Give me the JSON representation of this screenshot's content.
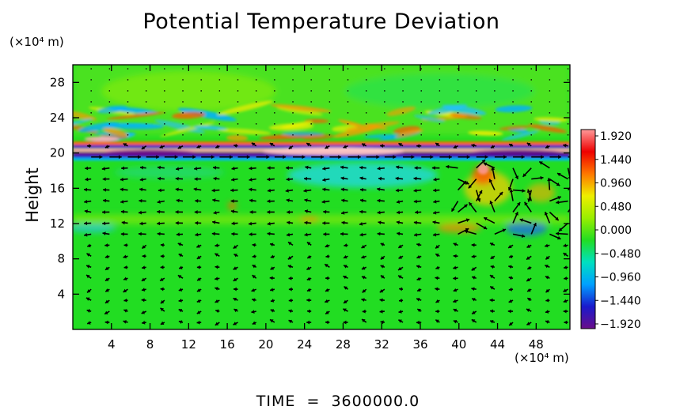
{
  "chart_data": {
    "type": "heatmap",
    "title": "Potential Temperature Deviation",
    "ylabel": "Height",
    "xlabel": "",
    "x_unit": "(×10⁴ m)",
    "y_unit": "(×10⁴ m)",
    "xlim": [
      0,
      51.5
    ],
    "ylim": [
      0,
      30
    ],
    "x_ticks": [
      4,
      8,
      12,
      16,
      20,
      24,
      28,
      32,
      36,
      40,
      44,
      48
    ],
    "y_ticks": [
      4,
      8,
      12,
      16,
      20,
      24,
      28
    ],
    "colorbar": {
      "ticks": [
        "1.920",
        "1.440",
        "0.960",
        "0.480",
        "0.000",
        "−0.480",
        "−0.960",
        "−1.440",
        "−1.920"
      ],
      "range": [
        -1.92,
        1.92
      ],
      "colors": [
        "#6a0d8a",
        "#1a1acc",
        "#00a0ff",
        "#00e0c0",
        "#22dd22",
        "#99ee00",
        "#eeee00",
        "#ff7700",
        "#ee0000",
        "#ff9999"
      ]
    },
    "overlay": "velocity vector arrows",
    "features": [
      {
        "name": "warm/cold layered band",
        "x_range": [
          0,
          51.5
        ],
        "y_range": [
          19,
          22
        ]
      },
      {
        "name": "wave ripples",
        "x_range": [
          0,
          51.5
        ],
        "y_range": [
          22,
          26
        ]
      },
      {
        "name": "cold anomaly",
        "x_range": [
          24,
          36
        ],
        "y_range": [
          16,
          19
        ]
      },
      {
        "name": "warm anomaly",
        "x_range": [
          40,
          50
        ],
        "y_range": [
          12,
          19
        ]
      },
      {
        "name": "cold anomaly",
        "x_range": [
          45,
          50
        ],
        "y_range": [
          10,
          13
        ]
      }
    ],
    "footer": "TIME  =  3600000.0"
  }
}
